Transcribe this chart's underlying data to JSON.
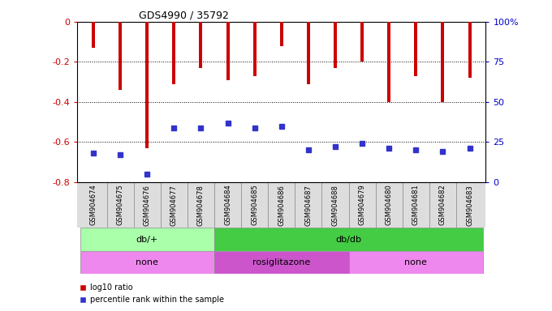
{
  "title": "GDS4990 / 35792",
  "samples": [
    "GSM904674",
    "GSM904675",
    "GSM904676",
    "GSM904677",
    "GSM904678",
    "GSM904684",
    "GSM904685",
    "GSM904686",
    "GSM904687",
    "GSM904688",
    "GSM904679",
    "GSM904680",
    "GSM904681",
    "GSM904682",
    "GSM904683"
  ],
  "log10_ratio": [
    -0.13,
    -0.34,
    -0.63,
    -0.31,
    -0.23,
    -0.29,
    -0.27,
    -0.12,
    -0.31,
    -0.23,
    -0.2,
    -0.4,
    -0.27,
    -0.4,
    -0.28
  ],
  "percentile_rank": [
    18,
    17,
    5,
    34,
    34,
    37,
    34,
    35,
    20,
    22,
    24,
    21,
    20,
    19,
    21
  ],
  "ylim_left": [
    -0.8,
    0.0
  ],
  "ylim_right": [
    0,
    100
  ],
  "yticks_left": [
    -0.8,
    -0.6,
    -0.4,
    -0.2,
    0
  ],
  "ytick_labels_right": [
    "0",
    "25",
    "50",
    "75",
    "100%"
  ],
  "bar_color": "#cc0000",
  "marker_color": "#3333cc",
  "genotype_groups": [
    {
      "label": "db/+",
      "start": 0,
      "end": 4,
      "color": "#aaffaa"
    },
    {
      "label": "db/db",
      "start": 5,
      "end": 14,
      "color": "#44cc44"
    }
  ],
  "agent_groups": [
    {
      "label": "none",
      "start": 0,
      "end": 4,
      "color": "#ee88ee"
    },
    {
      "label": "rosiglitazone",
      "start": 5,
      "end": 9,
      "color": "#cc55cc"
    },
    {
      "label": "none",
      "start": 10,
      "end": 14,
      "color": "#ee88ee"
    }
  ],
  "legend_labels": [
    "log10 ratio",
    "percentile rank within the sample"
  ],
  "legend_colors": [
    "#cc0000",
    "#3333cc"
  ],
  "bar_width": 0.12,
  "marker_size": 4
}
